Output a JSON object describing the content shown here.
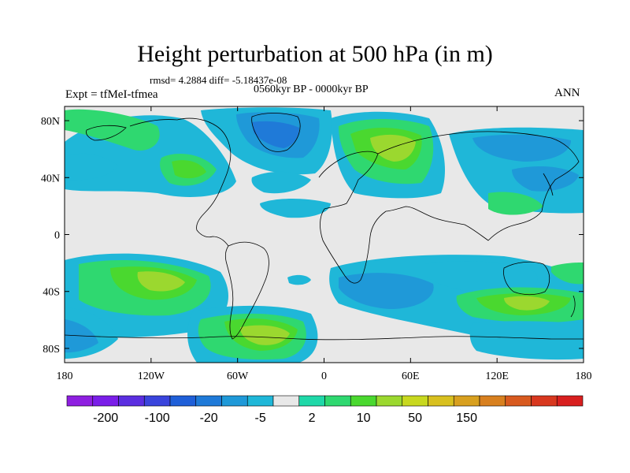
{
  "title": "Height perturbation at 500 hPa (in m)",
  "stats": "rmsd= 4.2884  diff= -5.18437e-08",
  "experiment": "Expt = tfMeI-tfmea",
  "period": "0560kyr BP - 0000kyr BP",
  "season": "ANN",
  "y_ticks": [
    {
      "label": "80N",
      "lat": 80
    },
    {
      "label": "40N",
      "lat": 40
    },
    {
      "label": "0",
      "lat": 0
    },
    {
      "label": "40S",
      "lat": -40
    },
    {
      "label": "80S",
      "lat": -80
    }
  ],
  "x_ticks": [
    {
      "label": "180",
      "lon": -180
    },
    {
      "label": "120W",
      "lon": -120
    },
    {
      "label": "60W",
      "lon": -60
    },
    {
      "label": "0",
      "lon": 0
    },
    {
      "label": "60E",
      "lon": 60
    },
    {
      "label": "120E",
      "lon": 120
    },
    {
      "label": "180",
      "lon": 180
    }
  ],
  "colorbar": {
    "colors": [
      "#8e1fe0",
      "#7a1ee8",
      "#5b2ee0",
      "#3a44dc",
      "#1f5fd8",
      "#1f7ad8",
      "#1f99d8",
      "#1fb7d8",
      "#e8e8e8",
      "#1fd8a8",
      "#2fd870",
      "#4ad82f",
      "#9bd82f",
      "#c8d81f",
      "#d8c01f",
      "#d8a01f",
      "#d8801f",
      "#d85a1f",
      "#d8381f",
      "#d81f1f"
    ],
    "labels": [
      {
        "text": "-200",
        "boundary": 1
      },
      {
        "text": "-100",
        "boundary": 3
      },
      {
        "text": "-20",
        "boundary": 5
      },
      {
        "text": "-5",
        "boundary": 7
      },
      {
        "text": "2",
        "boundary": 9
      },
      {
        "text": "10",
        "boundary": 11
      },
      {
        "text": "50",
        "boundary": 13
      },
      {
        "text": "150",
        "boundary": 15
      }
    ]
  }
}
